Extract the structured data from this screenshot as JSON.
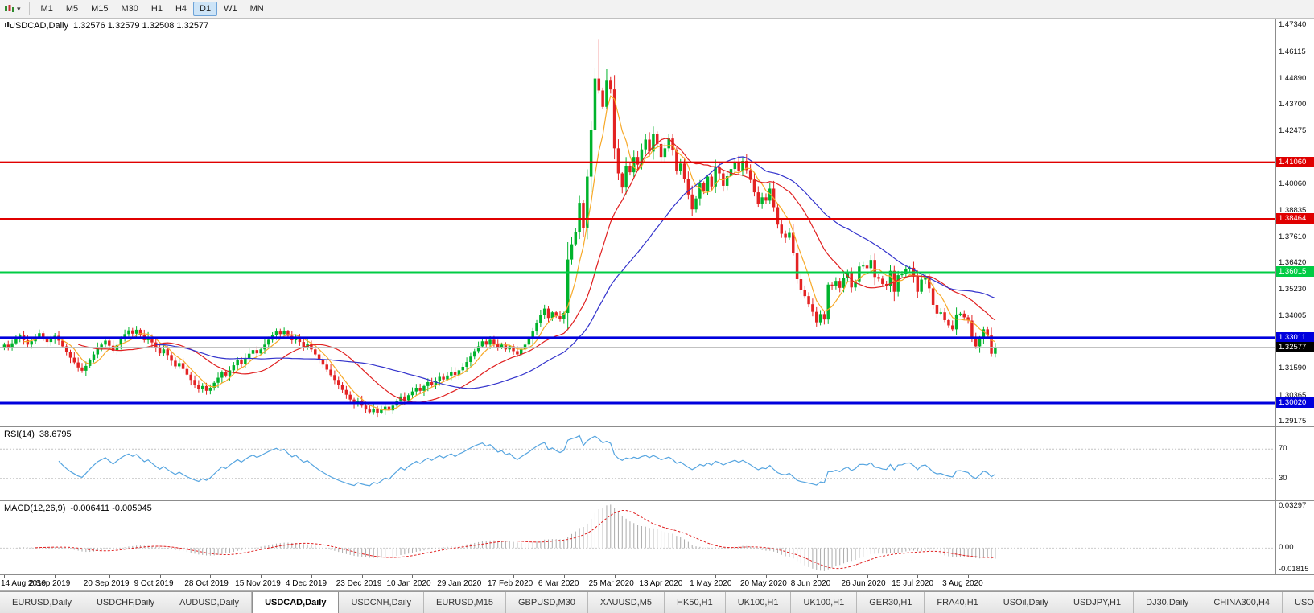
{
  "icons": {
    "dropdown": "▾",
    "tab_scroll_left": "◀"
  },
  "toolbar": {
    "periods": [
      {
        "label": "M1",
        "active": false
      },
      {
        "label": "M5",
        "active": false
      },
      {
        "label": "M15",
        "active": false
      },
      {
        "label": "M30",
        "active": false
      },
      {
        "label": "H1",
        "active": false
      },
      {
        "label": "H4",
        "active": false
      },
      {
        "label": "D1",
        "active": true
      },
      {
        "label": "W1",
        "active": false
      },
      {
        "label": "MN",
        "active": false
      }
    ]
  },
  "chart_data": {
    "type": "candlestick",
    "symbol": "USDCAD",
    "timeframe": "Daily",
    "title": "USDCAD,Daily",
    "ohlc_text": "1.32576 1.32579 1.32508 1.32577",
    "ylim": [
      1.2895,
      1.4765
    ],
    "bull_color": "#00b32c",
    "bear_color": "#e32323",
    "ma": {
      "fast_period": 6,
      "fast_color": "#f7a928",
      "medium_period": 20,
      "medium_color": "#e02020",
      "slow_period": 40,
      "slow_color": "#3333cc"
    },
    "levels": [
      {
        "value": 1.4106,
        "label": "1.41060",
        "color": "#e00000",
        "width": 2
      },
      {
        "value": 1.38464,
        "label": "1.38464",
        "color": "#e00000",
        "width": 2
      },
      {
        "value": 1.36015,
        "label": "1.36015",
        "color": "#00cc44",
        "width": 2
      },
      {
        "value": 1.33011,
        "label": "1.33011",
        "color": "#0000dd",
        "width": 3
      },
      {
        "value": 1.3002,
        "label": "1.30020",
        "color": "#0000dd",
        "width": 3
      }
    ],
    "current_price": {
      "value": 1.32577,
      "label": "1.32577",
      "badge_color": "#000000",
      "line_color": "#b8b8b8"
    },
    "y_axis_labels": [
      "1.47340",
      "1.46115",
      "1.44890",
      "1.43700",
      "1.42475",
      "1.40060",
      "1.38835",
      "1.37610",
      "1.36420",
      "1.35230",
      "1.34005",
      "1.31590",
      "1.30365",
      "1.29175"
    ],
    "x_axis_labels": [
      {
        "i": 0,
        "t": "14 Aug 2019"
      },
      {
        "i": 13,
        "t": "2 Sep 2019"
      },
      {
        "i": 27,
        "t": "20 Sep 2019"
      },
      {
        "i": 40,
        "t": "9 Oct 2019"
      },
      {
        "i": 53,
        "t": "28 Oct 2019"
      },
      {
        "i": 66,
        "t": "15 Nov 2019"
      },
      {
        "i": 79,
        "t": "4 Dec 2019"
      },
      {
        "i": 92,
        "t": "23 Dec 2019"
      },
      {
        "i": 105,
        "t": "10 Jan 2020"
      },
      {
        "i": 118,
        "t": "29 Jan 2020"
      },
      {
        "i": 131,
        "t": "17 Feb 2020"
      },
      {
        "i": 144,
        "t": "6 Mar 2020"
      },
      {
        "i": 157,
        "t": "25 Mar 2020"
      },
      {
        "i": 170,
        "t": "13 Apr 2020"
      },
      {
        "i": 183,
        "t": "1 May 2020"
      },
      {
        "i": 196,
        "t": "20 May 2020"
      },
      {
        "i": 209,
        "t": "8 Jun 2020"
      },
      {
        "i": 222,
        "t": "26 Jun 2020"
      },
      {
        "i": 235,
        "t": "15 Jul 2020"
      },
      {
        "i": 248,
        "t": "3 Aug 2020"
      }
    ],
    "closes": [
      1.327,
      1.3258,
      1.3276,
      1.3296,
      1.3312,
      1.329,
      1.327,
      1.3285,
      1.3305,
      1.3322,
      1.33,
      1.3282,
      1.3296,
      1.331,
      1.3288,
      1.3262,
      1.3235,
      1.321,
      1.3188,
      1.3165,
      1.315,
      1.3172,
      1.3198,
      1.3225,
      1.3252,
      1.327,
      1.3288,
      1.3265,
      1.3242,
      1.3268,
      1.3295,
      1.3318,
      1.3335,
      1.332,
      1.3338,
      1.3315,
      1.329,
      1.3305,
      1.328,
      1.3255,
      1.323,
      1.3248,
      1.3222,
      1.3196,
      1.317,
      1.3185,
      1.3158,
      1.3132,
      1.3108,
      1.3085,
      1.3065,
      1.308,
      1.3058,
      1.3072,
      1.3095,
      1.3118,
      1.3142,
      1.3128,
      1.3152,
      1.3175,
      1.3198,
      1.318,
      1.3205,
      1.3228,
      1.3245,
      1.323,
      1.3248,
      1.327,
      1.3292,
      1.3312,
      1.333,
      1.3318,
      1.3332,
      1.331,
      1.329,
      1.3305,
      1.3282,
      1.326,
      1.3272,
      1.3248,
      1.3225,
      1.32,
      1.3178,
      1.3155,
      1.313,
      1.3108,
      1.3085,
      1.3062,
      1.304,
      1.3018,
      1.2998,
      1.3012,
      1.299,
      1.2972,
      1.296,
      1.2975,
      1.2958,
      1.297,
      1.2985,
      1.2968,
      1.299,
      1.301,
      1.3032,
      1.3015,
      1.3038,
      1.3055,
      1.3072,
      1.3058,
      1.308,
      1.3098,
      1.3085,
      1.3105,
      1.3122,
      1.311,
      1.3128,
      1.3145,
      1.313,
      1.3152,
      1.3168,
      1.319,
      1.3215,
      1.324,
      1.3262,
      1.3285,
      1.327,
      1.3292,
      1.3275,
      1.3255,
      1.327,
      1.3248,
      1.3262,
      1.324,
      1.3225,
      1.3248,
      1.327,
      1.3295,
      1.333,
      1.3368,
      1.3405,
      1.3435,
      1.3392,
      1.3418,
      1.34,
      1.3388,
      1.3415,
      1.366,
      1.373,
      1.3785,
      1.392,
      1.3805,
      1.404,
      1.4255,
      1.449,
      1.4435,
      1.436,
      1.448,
      1.444,
      1.417,
      1.4055,
      1.399,
      1.409,
      1.406,
      1.413,
      1.4095,
      1.4165,
      1.421,
      1.4155,
      1.4235,
      1.419,
      1.413,
      1.417,
      1.4215,
      1.416,
      1.4065,
      1.41,
      1.403,
      1.3958,
      1.389,
      1.394,
      1.401,
      1.3975,
      1.404,
      1.3995,
      1.4085,
      1.4055,
      1.3998,
      1.4042,
      1.4075,
      1.4108,
      1.4068,
      1.4112,
      1.407,
      1.4025,
      1.3968,
      1.3915,
      1.3945,
      1.393,
      1.3985,
      1.39,
      1.382,
      1.3778,
      1.376,
      1.3782,
      1.369,
      1.357,
      1.352,
      1.3492,
      1.3455,
      1.342,
      1.3372,
      1.341,
      1.3385,
      1.3545,
      1.354,
      1.3562,
      1.353,
      1.3575,
      1.36,
      1.3532,
      1.356,
      1.3628,
      1.3632,
      1.362,
      1.3658,
      1.358,
      1.3572,
      1.3548,
      1.354,
      1.3608,
      1.3512,
      1.3588,
      1.3592,
      1.3618,
      1.3622,
      1.3582,
      1.3512,
      1.3568,
      1.358,
      1.3528,
      1.3452,
      1.3412,
      1.3418,
      1.3382,
      1.3358,
      1.334,
      1.3408,
      1.3412,
      1.3395,
      1.338,
      1.3302,
      1.3262,
      1.3298,
      1.334,
      1.3312,
      1.3228,
      1.32577
    ],
    "wick_overrides": {
      "152": 1.454,
      "153": 1.4668
    },
    "rsi": {
      "label": "RSI(14)",
      "value_text": "38.6795",
      "period": 14,
      "levels": [
        70,
        30
      ],
      "ylim": [
        0,
        100
      ],
      "color": "#56a5e0"
    },
    "macd": {
      "label": "MACD(12,26,9)",
      "values_text": "-0.006411 -0.005945",
      "fast": 12,
      "slow": 26,
      "signal": 9,
      "ylim": [
        -0.0186,
        0.0332
      ],
      "axis_labels": [
        "0.03297",
        "0.00",
        "-0.01815"
      ],
      "hist_color": "#aaaaaa",
      "signal_color": "#e02020"
    }
  },
  "tabs": {
    "items": [
      {
        "label": "EURUSD,Daily",
        "active": false
      },
      {
        "label": "USDCHF,Daily",
        "active": false
      },
      {
        "label": "AUDUSD,Daily",
        "active": false
      },
      {
        "label": "USDCAD,Daily",
        "active": true
      },
      {
        "label": "USDCNH,Daily",
        "active": false
      },
      {
        "label": "EURUSD,M15",
        "active": false
      },
      {
        "label": "GBPUSD,M30",
        "active": false
      },
      {
        "label": "XAUUSD,M5",
        "active": false
      },
      {
        "label": "HK50,H1",
        "active": false
      },
      {
        "label": "UK100,H1",
        "active": false
      },
      {
        "label": "UK100,H1",
        "active": false
      },
      {
        "label": "GER30,H1",
        "active": false
      },
      {
        "label": "FRA40,H1",
        "active": false
      },
      {
        "label": "USOil,Daily",
        "active": false
      },
      {
        "label": "USDJPY,H1",
        "active": false
      },
      {
        "label": "DJ30,Daily",
        "active": false
      },
      {
        "label": "CHINA300,H4",
        "active": false
      },
      {
        "label": "USOil,D",
        "active": false
      }
    ]
  }
}
